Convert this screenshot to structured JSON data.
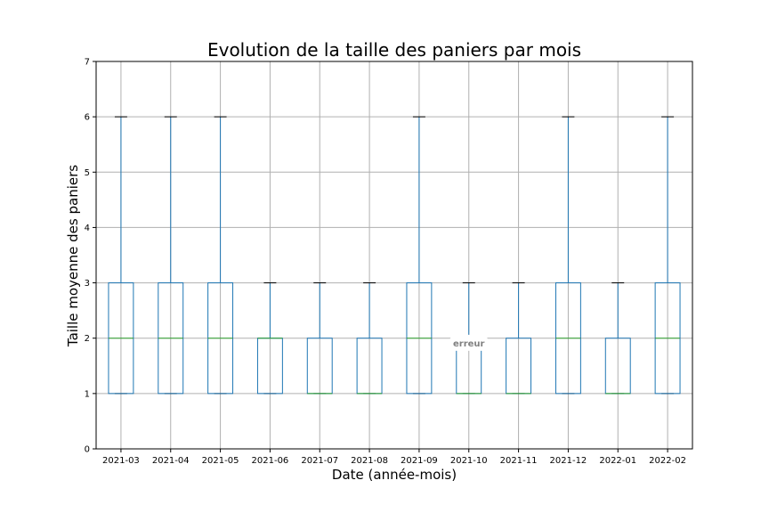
{
  "chart_data": {
    "type": "boxplot",
    "title": "Evolution de la taille des paniers par mois",
    "xlabel": "Date (année-mois)",
    "ylabel": "Taille moyenne des paniers",
    "ylim": [
      0,
      7
    ],
    "yticks": [
      "0",
      "1",
      "2",
      "3",
      "4",
      "5",
      "6",
      "7"
    ],
    "grid": true,
    "colors": {
      "box": "#1f77b4",
      "median": "#2ca02c",
      "cap": "#000000",
      "grid": "#b0b0b0"
    },
    "categories": [
      "2021-03",
      "2021-04",
      "2021-05",
      "2021-06",
      "2021-07",
      "2021-08",
      "2021-09",
      "2021-10",
      "2021-11",
      "2021-12",
      "2022-01",
      "2022-02"
    ],
    "boxes": [
      {
        "min": 1,
        "q1": 1,
        "median": 2,
        "q3": 3,
        "max": 6
      },
      {
        "min": 1,
        "q1": 1,
        "median": 2,
        "q3": 3,
        "max": 6
      },
      {
        "min": 1,
        "q1": 1,
        "median": 2,
        "q3": 3,
        "max": 6
      },
      {
        "min": 1,
        "q1": 1,
        "median": 2,
        "q3": 2,
        "max": 3
      },
      {
        "min": 1,
        "q1": 1,
        "median": 1,
        "q3": 2,
        "max": 3
      },
      {
        "min": 1,
        "q1": 1,
        "median": 1,
        "q3": 2,
        "max": 3
      },
      {
        "min": 1,
        "q1": 1,
        "median": 2,
        "q3": 3,
        "max": 6
      },
      {
        "min": 1,
        "q1": 1,
        "median": 1,
        "q3": 2,
        "max": 3
      },
      {
        "min": 1,
        "q1": 1,
        "median": 1,
        "q3": 2,
        "max": 3
      },
      {
        "min": 1,
        "q1": 1,
        "median": 2,
        "q3": 3,
        "max": 6
      },
      {
        "min": 1,
        "q1": 1,
        "median": 1,
        "q3": 2,
        "max": 3
      },
      {
        "min": 1,
        "q1": 1,
        "median": 2,
        "q3": 3,
        "max": 6
      }
    ],
    "annotation": {
      "text": "erreur",
      "category": "2021-10",
      "y": 1.9
    }
  }
}
